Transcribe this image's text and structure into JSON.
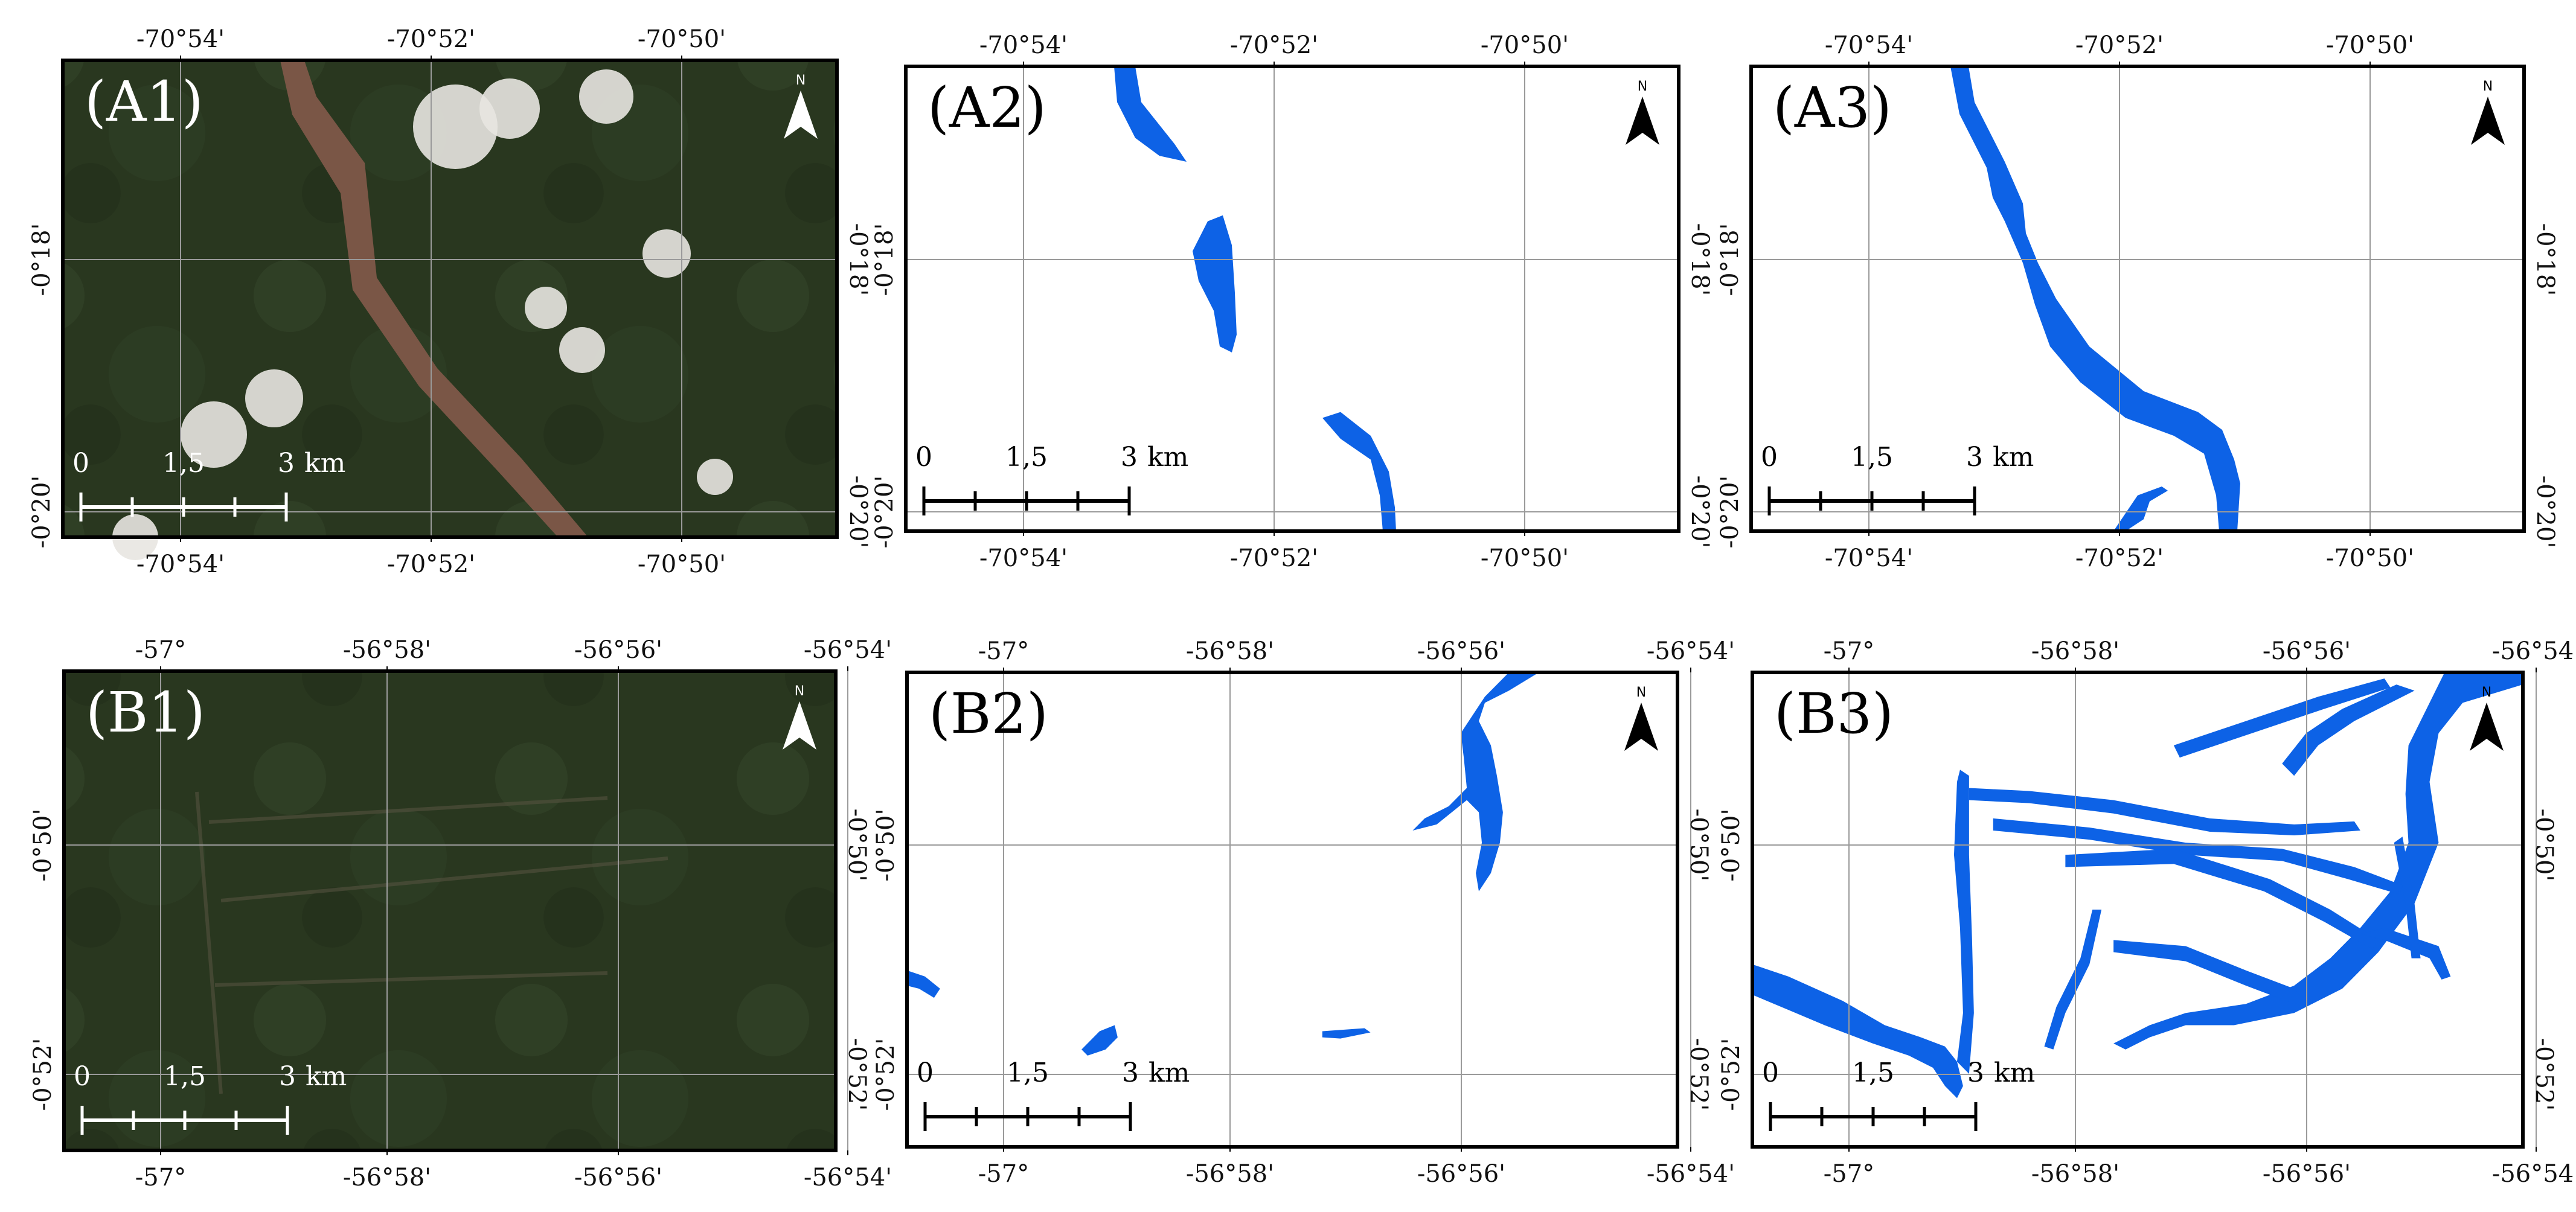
{
  "colors": {
    "water": "#0d62e6",
    "forest": "#29371f",
    "river_muddy": "#7a5646",
    "grid": "#9a9a9a",
    "frame": "#000000"
  },
  "north_letter": "N",
  "rows": [
    {
      "id": "A",
      "x_ticks": [
        "-70°54'",
        "-70°52'",
        "-70°50'"
      ],
      "y_ticks": [
        "-0°18'",
        "-0°20'"
      ],
      "scalebar": {
        "labels": [
          "0",
          "1,5",
          "3"
        ],
        "unit": "km"
      },
      "panels": [
        {
          "label": "(A1)",
          "kind": "satellite"
        },
        {
          "label": "(A2)",
          "kind": "water-mask"
        },
        {
          "label": "(A3)",
          "kind": "water-mask"
        }
      ]
    },
    {
      "id": "B",
      "x_ticks": [
        "-57°",
        "-56°58'",
        "-56°56'",
        "-56°54'"
      ],
      "y_ticks": [
        "-0°50'",
        "-0°52'"
      ],
      "scalebar": {
        "labels": [
          "0",
          "1,5",
          "3"
        ],
        "unit": "km"
      },
      "panels": [
        {
          "label": "(B1)",
          "kind": "satellite"
        },
        {
          "label": "(B2)",
          "kind": "water-mask"
        },
        {
          "label": "(B3)",
          "kind": "water-mask"
        }
      ]
    }
  ]
}
